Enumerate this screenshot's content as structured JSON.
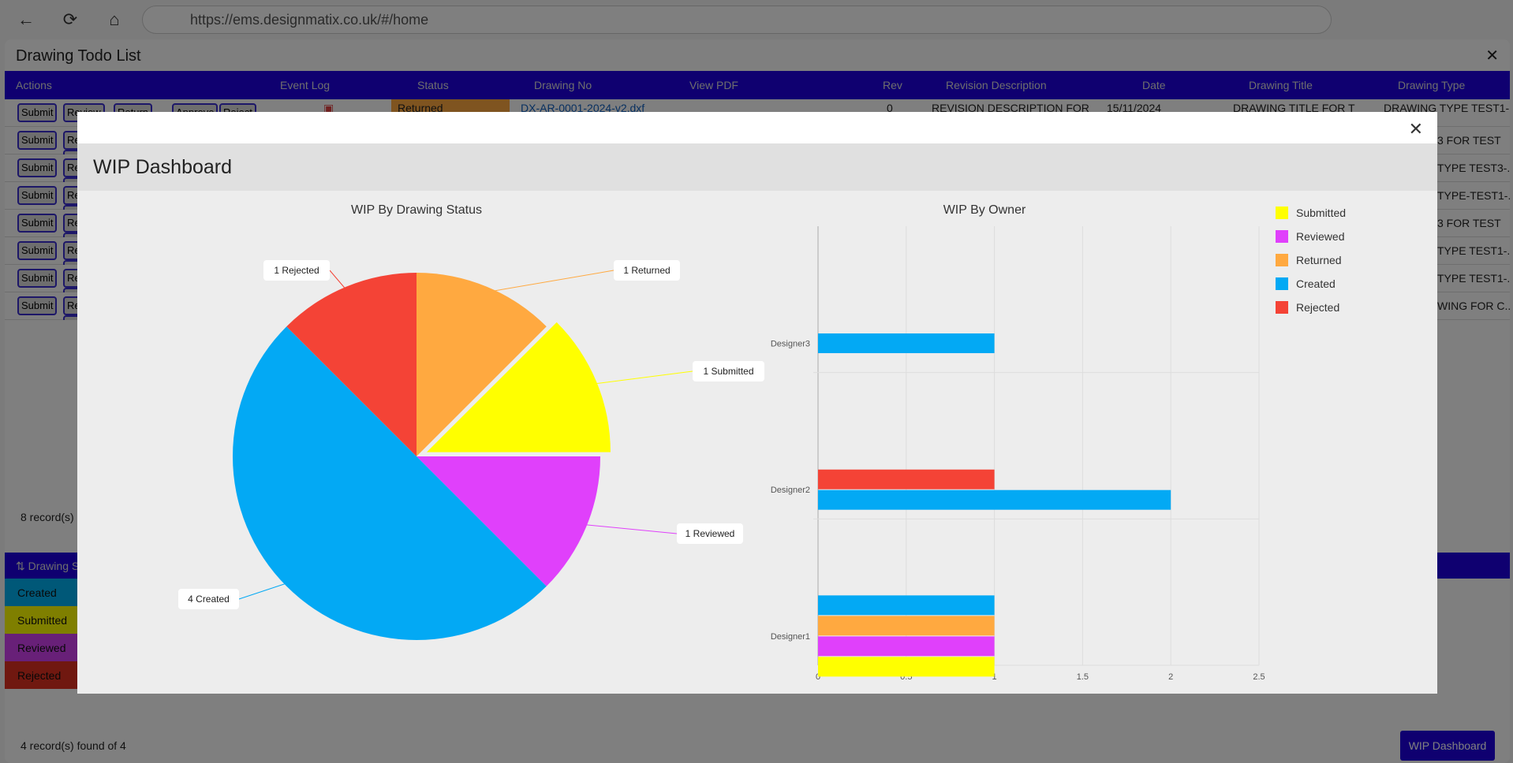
{
  "browser": {
    "url": "https://ems.designmatix.co.uk/#/home",
    "back": "←",
    "refresh": "⟳",
    "home": "⌂"
  },
  "app": {
    "title": "Drawing Todo List",
    "close": "✕",
    "columns": [
      "Actions",
      "Event Log",
      "Status",
      "Drawing No",
      "View PDF",
      "Rev",
      "Revision Description",
      "Date",
      "Drawing Title",
      "Drawing Type"
    ],
    "action_buttons": [
      "Submit",
      "Review",
      "Return",
      "Approve",
      "Reject"
    ],
    "first_row": {
      "status": "Returned",
      "drawing_no": "DX-AR-0001-2024-v2.dxf",
      "rev": "0",
      "revision_description": "REVISION DESCRIPTION FOR",
      "date": "15/11/2024",
      "drawing_title": "DRAWING TITLE FOR T",
      "drawing_type": "DRAWING TYPE TEST1-..."
    },
    "drawing_type_visible": [
      "DRAWING TYPE TEST1-...",
      "3 FOR TEST",
      "TYPE TEST3-...",
      "TYPE-TEST1-...",
      "3 FOR TEST",
      "TYPE TEST1-...",
      "TYPE TEST1-...",
      "WING FOR C..."
    ],
    "records_text": "8 record(s)",
    "status_table": {
      "header": "Drawing S",
      "rows": [
        "Created",
        "Submitted",
        "Reviewed",
        "Rejected"
      ],
      "colors": [
        "#00b0f0",
        "#ffff00",
        "#d040f0",
        "#e03020"
      ]
    },
    "records_text2": "4 record(s) found of 4",
    "wip_button": "WIP Dashboard"
  },
  "modal": {
    "title": "WIP Dashboard",
    "close": "✕"
  },
  "chart_data": [
    {
      "type": "pie",
      "title": "WIP By Drawing Status",
      "slices": [
        {
          "label": "Returned",
          "value": 1,
          "color": "#ffa940"
        },
        {
          "label": "Submitted",
          "value": 1,
          "color": "#ffff00",
          "exploded": true
        },
        {
          "label": "Reviewed",
          "value": 1,
          "color": "#e040fb"
        },
        {
          "label": "Created",
          "value": 4,
          "color": "#03a9f4"
        },
        {
          "label": "Rejected",
          "value": 1,
          "color": "#f44336"
        }
      ],
      "data_labels": [
        "1 Returned",
        "1 Submitted",
        "1 Reviewed",
        "4 Created",
        "1 Rejected"
      ]
    },
    {
      "type": "bar",
      "orientation": "horizontal",
      "title": "WIP By Owner",
      "categories": [
        "Designer3",
        "Designer2",
        "Designer1"
      ],
      "xlim": [
        0,
        2.5
      ],
      "xticks": [
        "0",
        "0.5",
        "1",
        "1.5",
        "2",
        "2.5"
      ],
      "series": [
        {
          "name": "Submitted",
          "color": "#ffff00",
          "values": [
            0,
            0,
            1
          ]
        },
        {
          "name": "Reviewed",
          "color": "#e040fb",
          "values": [
            0,
            0,
            1
          ]
        },
        {
          "name": "Returned",
          "color": "#ffa940",
          "values": [
            0,
            0,
            1
          ]
        },
        {
          "name": "Created",
          "color": "#03a9f4",
          "values": [
            1,
            2,
            1
          ]
        },
        {
          "name": "Rejected",
          "color": "#f44336",
          "values": [
            0,
            1,
            0
          ]
        }
      ],
      "legend": "right"
    }
  ]
}
